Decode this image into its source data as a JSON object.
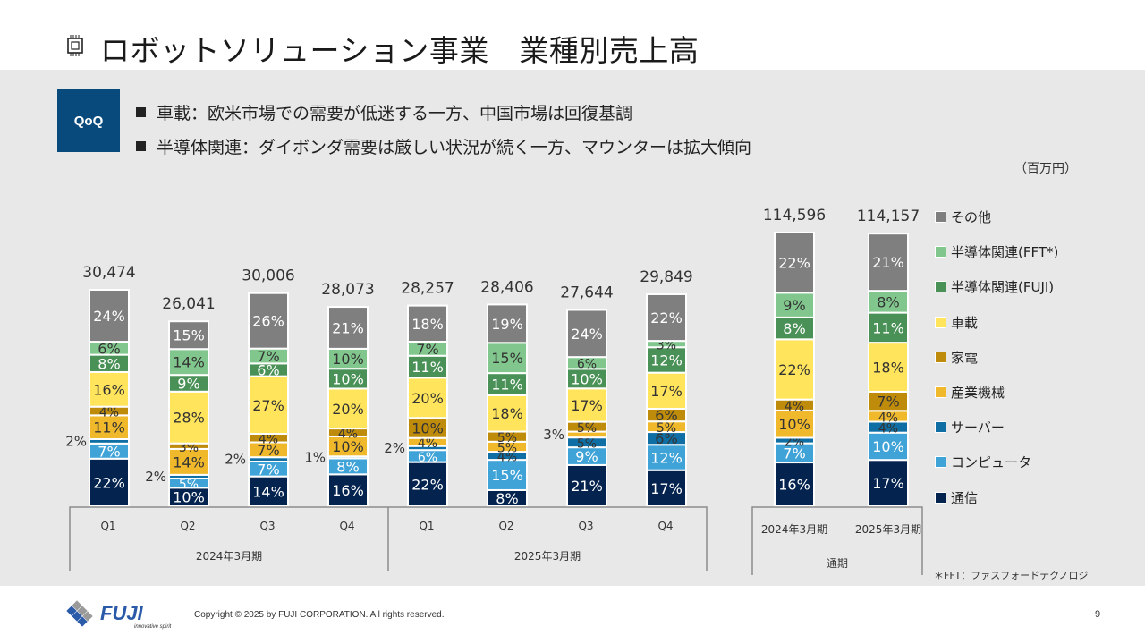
{
  "header": {
    "title": "ロボットソリューション事業　業種別売上高",
    "icon": "chip-icon"
  },
  "summary": {
    "badge": "QoQ",
    "bullets": [
      "車載：欧米市場での需要が低迷する一方、中国市場は回復基調",
      "半導体関連：ダイボンダ需要は厳しい状況が続く一方、マウンターは拡大傾向"
    ]
  },
  "unit_label": "（百万円）",
  "footnote": "＊FFT：ファスフォードテクノロジ",
  "footer": {
    "copyright": "Copyright © 2025 by FUJI CORPORATION. All rights reserved.",
    "page_number": "9",
    "logo_text": "FUJI",
    "logo_tagline": "innovative spirit"
  },
  "chart_data": {
    "type": "bar",
    "stacked": true,
    "percent_stacked": true,
    "title": "ロボットソリューション事業 業種別売上高",
    "unit": "百万円",
    "categories": [
      "Q1",
      "Q2",
      "Q3",
      "Q4",
      "Q1",
      "Q2",
      "Q3",
      "Q4",
      "2024年3月期",
      "2025年3月期"
    ],
    "groups": [
      {
        "label": "2024年3月期",
        "categories": [
          0,
          1,
          2,
          3
        ]
      },
      {
        "label": "2025年3月期",
        "categories": [
          4,
          5,
          6,
          7
        ]
      },
      {
        "label": "通期",
        "categories": [
          8,
          9
        ]
      }
    ],
    "totals": [
      "30,474",
      "26,041",
      "30,006",
      "28,073",
      "28,257",
      "28,406",
      "27,644",
      "29,849",
      "114,596",
      "114,157"
    ],
    "series": [
      {
        "name": "通信",
        "color": "#04244f",
        "label_color": "#ffffff",
        "values": [
          22,
          10,
          14,
          16,
          22,
          8,
          21,
          17,
          16,
          17
        ]
      },
      {
        "name": "コンピュータ",
        "color": "#3fa3d8",
        "label_color": "#ffffff",
        "values": [
          7,
          5,
          7,
          8,
          6,
          15,
          9,
          12,
          7,
          10
        ]
      },
      {
        "name": "サーバー",
        "color": "#0f6fa4",
        "label_color": "#333333",
        "values": [
          2,
          2,
          2,
          1,
          2,
          4,
          5,
          6,
          2,
          4
        ]
      },
      {
        "name": "産業機械",
        "color": "#f0b92c",
        "label_color": "#333333",
        "values": [
          11,
          14,
          7,
          10,
          4,
          5,
          3,
          5,
          10,
          4
        ]
      },
      {
        "name": "家電",
        "color": "#bf8b0b",
        "label_color": "#333333",
        "values": [
          4,
          3,
          4,
          4,
          10,
          5,
          5,
          6,
          4,
          7
        ]
      },
      {
        "name": "車載",
        "color": "#ffe45c",
        "label_color": "#333333",
        "values": [
          16,
          28,
          27,
          20,
          20,
          18,
          17,
          17,
          22,
          18
        ]
      },
      {
        "name": "半導体関連(FUJI)",
        "color": "#4a9157",
        "label_color": "#ffffff",
        "values": [
          8,
          9,
          6,
          10,
          11,
          11,
          10,
          12,
          8,
          11
        ]
      },
      {
        "name": "半導体関連(FFT*)",
        "color": "#81c78d",
        "label_color": "#333333",
        "values": [
          6,
          14,
          7,
          10,
          7,
          15,
          6,
          3,
          9,
          8
        ]
      },
      {
        "name": "その他",
        "color": "#7f7f7f",
        "label_color": "#ffffff",
        "values": [
          24,
          15,
          26,
          21,
          18,
          19,
          24,
          22,
          22,
          21
        ]
      }
    ],
    "outside_labels": [
      {
        "category": 0,
        "series": "サーバー",
        "text": "2%"
      },
      {
        "category": 1,
        "series": "サーバー",
        "text": "2%"
      },
      {
        "category": 2,
        "series": "サーバー",
        "text": "2%"
      },
      {
        "category": 3,
        "series": "サーバー",
        "text": "1%"
      },
      {
        "category": 4,
        "series": "サーバー",
        "text": "2%"
      },
      {
        "category": 6,
        "series": "産業機械",
        "text": "3%"
      }
    ],
    "legend_order": [
      "その他",
      "半導体関連(FFT*)",
      "半導体関連(FUJI)",
      "車載",
      "家電",
      "産業機械",
      "サーバー",
      "コンピュータ",
      "通信"
    ],
    "legend_position": "right",
    "grid": false,
    "xlabel": "",
    "ylabel": ""
  }
}
